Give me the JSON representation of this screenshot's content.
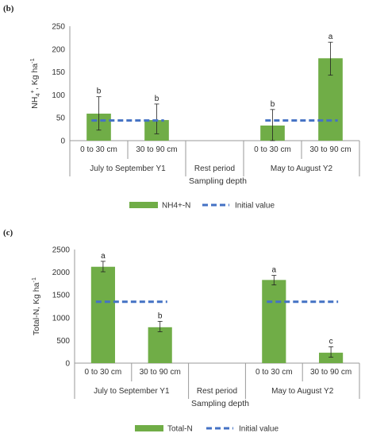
{
  "chart_data": [
    {
      "panel_label": "(b)",
      "type": "bar",
      "ylabel": "NH4+, Kg ha-1",
      "ylabel_main": "NH",
      "ylabel_sub": "4",
      "ylabel_sup": "+",
      "ylabel_rest": ", Kg ha",
      "ylabel_unit_sup": "-1",
      "xlabel": "Sampling depth",
      "ylim": [
        0,
        250
      ],
      "yticks": [
        0,
        50,
        100,
        150,
        200,
        250
      ],
      "ytick_labels": [
        "0",
        "50",
        "100",
        "150",
        "200",
        "250"
      ],
      "categories": [
        "0 to 30 cm",
        "30 to 90 cm",
        "",
        "0 to 30 cm",
        "30 to 90 cm"
      ],
      "groups": [
        "July to September Y1",
        "Rest period",
        "May to August Y2"
      ],
      "series": [
        {
          "name": "NH4+-N",
          "type": "bar",
          "color": "#70AD47",
          "values": [
            59,
            45,
            null,
            33,
            180
          ],
          "err_low": [
            23,
            15,
            null,
            0,
            143
          ],
          "err_high": [
            96,
            80,
            null,
            68,
            215
          ],
          "labels": [
            "b",
            "b",
            "",
            "b",
            "a"
          ]
        },
        {
          "name": "Initial value",
          "type": "line",
          "color": "#4472C4",
          "style": "dashed",
          "segments": [
            {
              "from": 0,
              "to": 1,
              "value": 44
            },
            {
              "from": 3,
              "to": 4,
              "value": 44
            }
          ]
        }
      ],
      "legend": [
        "NH4+-N",
        "Initial value"
      ],
      "legend_position": "bottom",
      "grid": false
    },
    {
      "panel_label": "(c)",
      "type": "bar",
      "ylabel": "Total-N, Kg ha-1",
      "ylabel_main": "Total-N, Kg ha",
      "ylabel_unit_sup": "-1",
      "xlabel": "Sampling depth",
      "ylim": [
        0,
        2500
      ],
      "yticks": [
        0,
        500,
        1000,
        1500,
        2000,
        2500
      ],
      "ytick_labels": [
        "0",
        "500",
        "1000",
        "1500",
        "2000",
        "2500"
      ],
      "categories": [
        "0 to 30 cm",
        "30 to 90 cm",
        "",
        "0 to 30 cm",
        "30 to 90 cm"
      ],
      "groups": [
        "July to September Y1",
        "Rest period",
        "May to August Y2"
      ],
      "series": [
        {
          "name": "Total-N",
          "type": "bar",
          "color": "#70AD47",
          "values": [
            2120,
            790,
            null,
            1830,
            230
          ],
          "err_low": [
            2010,
            690,
            null,
            1720,
            130
          ],
          "err_high": [
            2240,
            920,
            null,
            1930,
            360
          ],
          "labels": [
            "a",
            "b",
            "",
            "a",
            "c"
          ]
        },
        {
          "name": "Initial value",
          "type": "line",
          "color": "#4472C4",
          "style": "dashed",
          "segments": [
            {
              "from": 0,
              "to": 1,
              "value": 1350
            },
            {
              "from": 3,
              "to": 4,
              "value": 1350
            }
          ]
        }
      ],
      "legend": [
        "Total-N",
        "Initial value"
      ],
      "legend_position": "bottom",
      "grid": false
    }
  ]
}
